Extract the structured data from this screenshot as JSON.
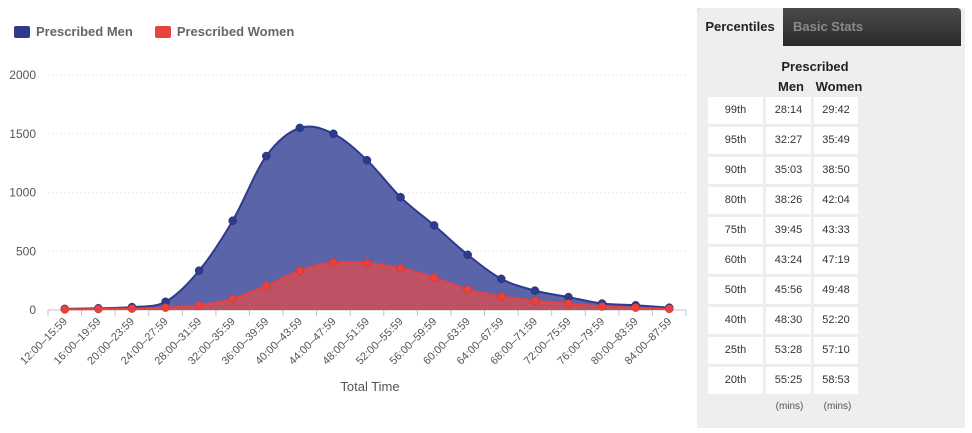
{
  "chart_data": {
    "type": "area",
    "categories": [
      "12:00–15:59",
      "16:00–19:59",
      "20:00–23:59",
      "24:00–27:59",
      "28:00–31:59",
      "32:00–35:59",
      "36:00–39:59",
      "40:00–43:59",
      "44:00–47:59",
      "48:00–51:59",
      "52:00–55:59",
      "56:00–59:59",
      "60:00–63:59",
      "64:00–67:59",
      "68:00–71:59",
      "72:00–75:59",
      "76:00–79:59",
      "80:00–83:59",
      "84:00–87:59"
    ],
    "series": [
      {
        "name": "Prescribed Men",
        "color": "#2e3a8c",
        "fill": "#5b64a9",
        "values": [
          10,
          15,
          25,
          70,
          335,
          760,
          1310,
          1550,
          1500,
          1275,
          960,
          720,
          470,
          265,
          165,
          110,
          55,
          40,
          20
        ]
      },
      {
        "name": "Prescribed Women",
        "color": "#e8423e",
        "fill": "#c94f5c",
        "values": [
          5,
          8,
          12,
          20,
          40,
          95,
          205,
          335,
          405,
          400,
          355,
          275,
          175,
          115,
          80,
          55,
          30,
          20,
          10
        ]
      }
    ],
    "yticks": [
      0,
      500,
      1000,
      1500,
      2000
    ],
    "ylim": [
      0,
      2000
    ],
    "xlabel": "Total Time",
    "ylabel": "",
    "legend": "top-left"
  },
  "panel": {
    "tabs": {
      "active": "Percentiles",
      "inactive": "Basic Stats"
    },
    "group_header": "Prescribed",
    "col_men": "Men",
    "col_women": "Women",
    "rows": [
      {
        "label": "99th",
        "men": "28:14",
        "women": "29:42"
      },
      {
        "label": "95th",
        "men": "32:27",
        "women": "35:49"
      },
      {
        "label": "90th",
        "men": "35:03",
        "women": "38:50"
      },
      {
        "label": "80th",
        "men": "38:26",
        "women": "42:04"
      },
      {
        "label": "75th",
        "men": "39:45",
        "women": "43:33"
      },
      {
        "label": "60th",
        "men": "43:24",
        "women": "47:19"
      },
      {
        "label": "50th",
        "men": "45:56",
        "women": "49:48"
      },
      {
        "label": "40th",
        "men": "48:30",
        "women": "52:20"
      },
      {
        "label": "25th",
        "men": "53:28",
        "women": "57:10"
      },
      {
        "label": "20th",
        "men": "55:25",
        "women": "58:53"
      }
    ],
    "units_men": "(mins)",
    "units_women": "(mins)"
  }
}
